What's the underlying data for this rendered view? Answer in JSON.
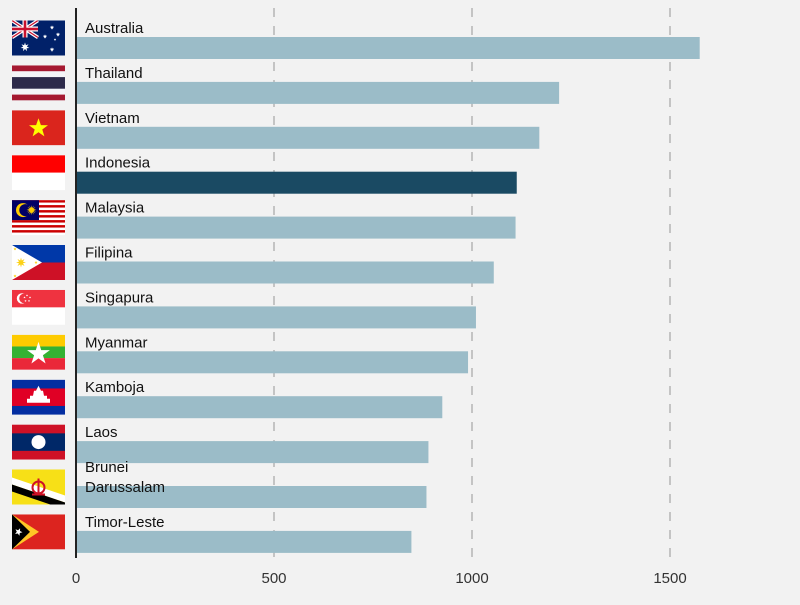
{
  "chart_data": {
    "type": "bar",
    "orientation": "horizontal",
    "title": "",
    "xlabel": "",
    "ylabel": "",
    "xlim": [
      0,
      1800
    ],
    "x_ticks": [
      0,
      500,
      1000,
      1500
    ],
    "x_tick_labels": [
      "0",
      "500",
      "1000",
      "1500"
    ],
    "grid": "vertical dashed",
    "legend": "none",
    "categories": [
      {
        "label_lines": [
          "Australia"
        ],
        "flag": "australia-flag"
      },
      {
        "label_lines": [
          "Thailand"
        ],
        "flag": "thailand-flag"
      },
      {
        "label_lines": [
          "Vietnam"
        ],
        "flag": "vietnam-flag"
      },
      {
        "label_lines": [
          "Indonesia"
        ],
        "flag": "indonesia-flag"
      },
      {
        "label_lines": [
          "Malaysia"
        ],
        "flag": "malaysia-flag"
      },
      {
        "label_lines": [
          "Filipina"
        ],
        "flag": "philippines-flag"
      },
      {
        "label_lines": [
          "Singapura"
        ],
        "flag": "singapore-flag"
      },
      {
        "label_lines": [
          "Myanmar"
        ],
        "flag": "myanmar-flag"
      },
      {
        "label_lines": [
          "Kamboja"
        ],
        "flag": "cambodia-flag"
      },
      {
        "label_lines": [
          "Laos"
        ],
        "flag": "laos-flag"
      },
      {
        "label_lines": [
          "Brunei",
          "Darussalam"
        ],
        "flag": "brunei-flag"
      },
      {
        "label_lines": [
          "Timor-Leste"
        ],
        "flag": "timor-leste-flag"
      }
    ],
    "values": [
      1575,
      1220,
      1170,
      1113,
      1110,
      1055,
      1010,
      990,
      925,
      890,
      885,
      847
    ],
    "highlight_index": 3,
    "colors": {
      "bar": "#9bbcc8",
      "highlight": "#1a4a63",
      "grid": "#c4c4c4",
      "axis": "#222222",
      "text": "#111111",
      "tick_text": "#333333",
      "background": "#f2f2f2"
    }
  }
}
